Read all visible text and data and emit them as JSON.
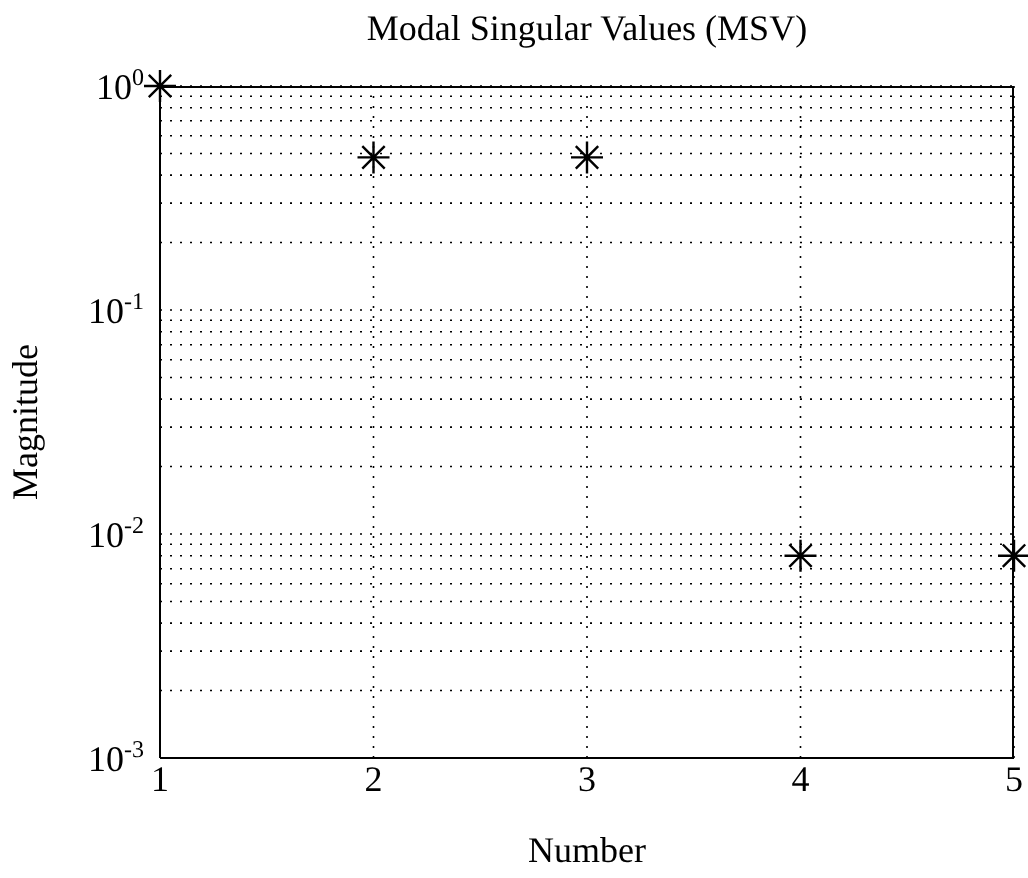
{
  "chart_data": {
    "type": "scatter",
    "title": "Modal Singular Values (MSV)",
    "xlabel": "Number",
    "ylabel": "Magnitude",
    "x": [
      1,
      2,
      3,
      4,
      5
    ],
    "series": [
      {
        "color": "#000000",
        "values": [
          1,
          0.48,
          0.48,
          0.008,
          0.008
        ]
      }
    ],
    "marker": "cross",
    "log": "y",
    "grid": true,
    "xlim": [
      1,
      5
    ],
    "xticks": [
      1,
      2,
      3,
      4,
      5
    ],
    "ylim": [
      0.001,
      1
    ],
    "yticks": [
      {
        "value": 0.001,
        "label": "10$^{-3}$"
      },
      {
        "value": 0.002,
        "label": null
      },
      {
        "value": 0.003,
        "label": null
      },
      {
        "value": 0.004,
        "label": null
      },
      {
        "value": 0.005,
        "label": null
      },
      {
        "value": 0.006,
        "label": null
      },
      {
        "value": 0.007,
        "label": null
      },
      {
        "value": 0.008,
        "label": null
      },
      {
        "value": 0.009,
        "label": null
      },
      {
        "value": 0.01,
        "label": "10$^{-2}$"
      },
      {
        "value": 0.02,
        "label": null
      },
      {
        "value": 0.03,
        "label": null
      },
      {
        "value": 0.04,
        "label": null
      },
      {
        "value": 0.05,
        "label": null
      },
      {
        "value": 0.06,
        "label": null
      },
      {
        "value": 0.07,
        "label": null
      },
      {
        "value": 0.08,
        "label": null
      },
      {
        "value": 0.09,
        "label": null
      },
      {
        "value": 0.1,
        "label": "10$^{-1}$"
      },
      {
        "value": 0.2,
        "label": null
      },
      {
        "value": 0.3,
        "label": null
      },
      {
        "value": 0.4,
        "label": null
      },
      {
        "value": 0.5,
        "label": null
      },
      {
        "value": 0.6,
        "label": null
      },
      {
        "value": 0.7,
        "label": null
      },
      {
        "value": 0.8,
        "label": null
      },
      {
        "value": 0.9,
        "label": null
      },
      {
        "value": 1,
        "label": "10$^{0}$"
      }
    ]
  }
}
